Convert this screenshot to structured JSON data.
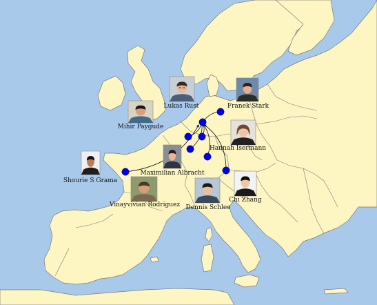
{
  "map": {
    "colors": {
      "sea": "#a9c9ea",
      "land": "#fdf6c3",
      "border": "#7a7a7a",
      "marker": "#0000ee",
      "arrow": "#111111"
    },
    "destination": "hub",
    "people": [
      {
        "name": "Lukas Rust",
        "portrait": "man-with-glasses-portrait"
      },
      {
        "name": "Franek Stark",
        "portrait": "man-portrait"
      },
      {
        "name": "Mihir Paygude",
        "portrait": "man-portrait"
      },
      {
        "name": "Hannah Isermann",
        "portrait": "woman-portrait"
      },
      {
        "name": "Maximilian Albracht",
        "portrait": "man-portrait"
      },
      {
        "name": "Shourie S Grama",
        "portrait": "man-portrait"
      },
      {
        "name": "Vinayvivian Rodriguez",
        "portrait": "man-outdoor-portrait"
      },
      {
        "name": "Dennis Schlee",
        "portrait": "man-portrait"
      },
      {
        "name": "Chi Zhang",
        "portrait": "man-portrait"
      }
    ]
  }
}
